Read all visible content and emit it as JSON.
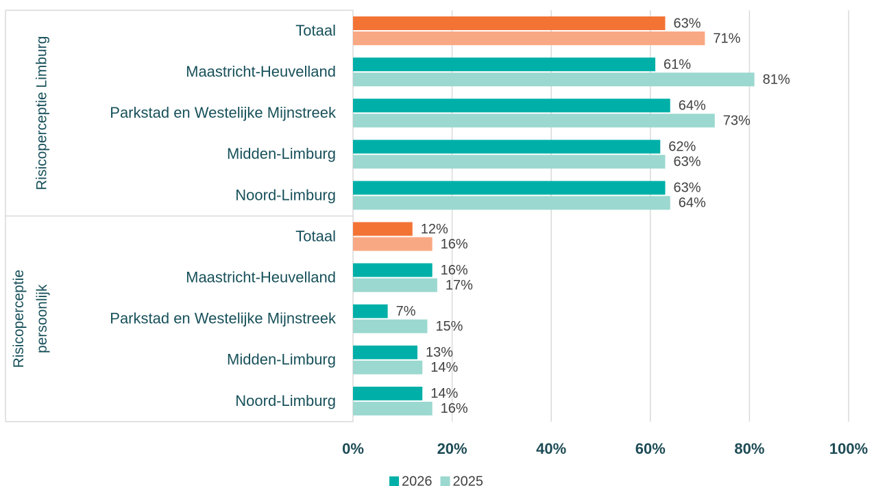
{
  "chart_data": {
    "type": "bar",
    "orientation": "horizontal",
    "groups": [
      {
        "label": "Risicoperceptie Limburg",
        "categories": [
          "Totaal",
          "Maastricht-Heuvelland",
          "Parkstad en Westelijke Mijnstreek",
          "Midden-Limburg",
          "Noord-Limburg"
        ]
      },
      {
        "label": "Risicoperceptie persoonlijk",
        "categories": [
          "Totaal",
          "Maastricht-Heuvelland",
          "Parkstad en Westelijke Mijnstreek",
          "Midden-Limburg",
          "Noord-Limburg"
        ]
      }
    ],
    "series": [
      {
        "name": "2026",
        "color": "#00b0a8",
        "colors": [
          "#f37335",
          "#00b0a8",
          "#00b0a8",
          "#00b0a8",
          "#00b0a8",
          "#f37335",
          "#00b0a8",
          "#00b0a8",
          "#00b0a8",
          "#00b0a8"
        ],
        "values": [
          63,
          61,
          64,
          62,
          63,
          12,
          16,
          7,
          13,
          14
        ],
        "value_labels": [
          "63%",
          "61%",
          "64%",
          "62%",
          "63%",
          "12%",
          "16%",
          "7%",
          "13%",
          "14%"
        ]
      },
      {
        "name": "2025",
        "color": "#9bd8d0",
        "colors": [
          "#f9a884",
          "#9bd8d0",
          "#9bd8d0",
          "#9bd8d0",
          "#9bd8d0",
          "#f9a884",
          "#9bd8d0",
          "#9bd8d0",
          "#9bd8d0",
          "#9bd8d0"
        ],
        "values": [
          71,
          81,
          73,
          63,
          64,
          16,
          17,
          15,
          14,
          16
        ],
        "value_labels": [
          "71%",
          "81%",
          "73%",
          "63%",
          "64%",
          "16%",
          "17%",
          "15%",
          "14%",
          "16%"
        ]
      }
    ],
    "xlim": [
      0,
      100
    ],
    "xticks": [
      {
        "value": 0,
        "label": "0%"
      },
      {
        "value": 20,
        "label": "20%"
      },
      {
        "value": 40,
        "label": "40%"
      },
      {
        "value": 60,
        "label": "60%"
      },
      {
        "value": 80,
        "label": "80%"
      },
      {
        "value": 100,
        "label": "100%"
      }
    ],
    "grid": true,
    "legend": "bottom"
  }
}
